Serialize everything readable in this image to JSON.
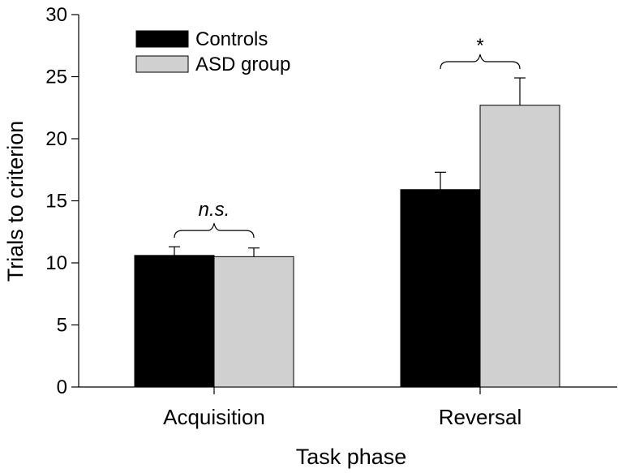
{
  "chart_data": {
    "type": "bar",
    "title": "",
    "xlabel": "Task phase",
    "ylabel": "Trials to criterion",
    "ylim": [
      0,
      30
    ],
    "yticks": [
      0,
      5,
      10,
      15,
      20,
      25,
      30
    ],
    "grid": false,
    "legend_position": "top-left",
    "categories": [
      "Acquisition",
      "Reversal"
    ],
    "series": [
      {
        "name": "Controls",
        "color": "#000000",
        "values": [
          10.6,
          15.9
        ],
        "errors": [
          0.7,
          1.4
        ]
      },
      {
        "name": "ASD group",
        "color": "#d0d0d0",
        "values": [
          10.5,
          22.7
        ],
        "errors": [
          0.7,
          2.2
        ]
      }
    ],
    "annotations": [
      {
        "category": "Acquisition",
        "text": "n.s.",
        "italic": true
      },
      {
        "category": "Reversal",
        "text": "*",
        "italic": false
      }
    ]
  }
}
